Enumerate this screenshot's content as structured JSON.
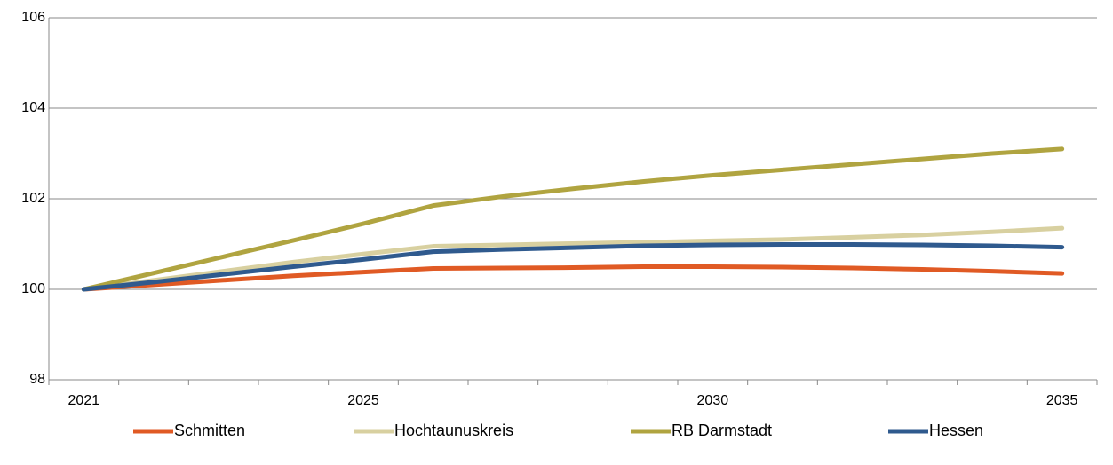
{
  "chart_data": {
    "type": "line",
    "categories": [
      "2021",
      null,
      null,
      null,
      "2025",
      null,
      null,
      null,
      null,
      "2030",
      null,
      null,
      null,
      null,
      "2035"
    ],
    "series": [
      {
        "name": "Schmitten",
        "color": "#e05a24",
        "values": [
          100,
          100.1,
          100.2,
          100.3,
          100.38,
          100.46,
          100.47,
          100.48,
          100.5,
          100.5,
          100.49,
          100.47,
          100.44,
          100.4,
          100.35
        ]
      },
      {
        "name": "Hochtaunuskreis",
        "color": "#d8d0a0",
        "values": [
          100,
          100.2,
          100.4,
          100.6,
          100.78,
          100.95,
          100.98,
          101.01,
          101.04,
          101.07,
          101.1,
          101.15,
          101.2,
          101.27,
          101.35
        ]
      },
      {
        "name": "RB Darmstadt",
        "color": "#b0a440",
        "values": [
          100,
          100.36,
          100.72,
          101.08,
          101.45,
          101.85,
          102.05,
          102.22,
          102.38,
          102.52,
          102.64,
          102.76,
          102.88,
          103.0,
          103.1
        ]
      },
      {
        "name": "Hessen",
        "color": "#2f5a8e",
        "values": [
          100,
          100.16,
          100.33,
          100.5,
          100.66,
          100.83,
          100.88,
          100.92,
          100.96,
          100.98,
          100.99,
          100.99,
          100.98,
          100.96,
          100.93
        ]
      }
    ],
    "ylim": [
      98,
      106
    ],
    "yticks": [
      98,
      100,
      102,
      104,
      106
    ],
    "grid": true,
    "legend": "bottom"
  }
}
